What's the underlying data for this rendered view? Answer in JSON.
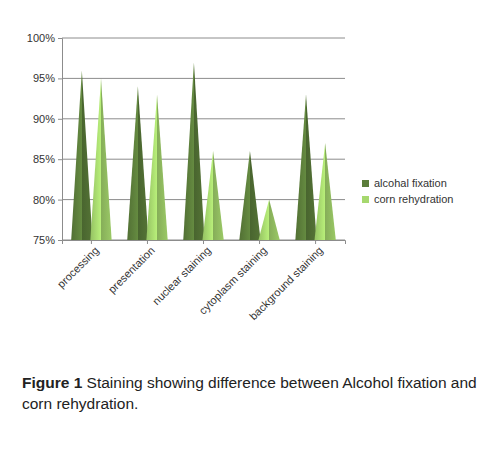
{
  "chart_data": {
    "type": "bar",
    "title": "Figure 1",
    "subtitle": "Staining showing difference between Alcohol fixation and corn rehydration.",
    "categories": [
      "processing",
      "presentation",
      "nuclear staining",
      "cytoplasm staining",
      "background staining"
    ],
    "series": [
      {
        "name": "alcohal fixation",
        "color": "#5b7d3a",
        "values": [
          96,
          94,
          97,
          86,
          93
        ]
      },
      {
        "name": "corn rehydration",
        "color": "#a6d86e",
        "values": [
          95,
          93,
          86,
          80,
          87
        ]
      }
    ],
    "ylim": [
      75,
      100
    ],
    "yticks": [
      {
        "value": 75,
        "label": "75%"
      },
      {
        "value": 80,
        "label": "80%"
      },
      {
        "value": 85,
        "label": "85%"
      },
      {
        "value": 90,
        "label": "90%"
      },
      {
        "value": 95,
        "label": "95%"
      },
      {
        "value": 100,
        "label": "100%"
      }
    ],
    "grid": true,
    "legend": "right",
    "marker": "cone"
  }
}
